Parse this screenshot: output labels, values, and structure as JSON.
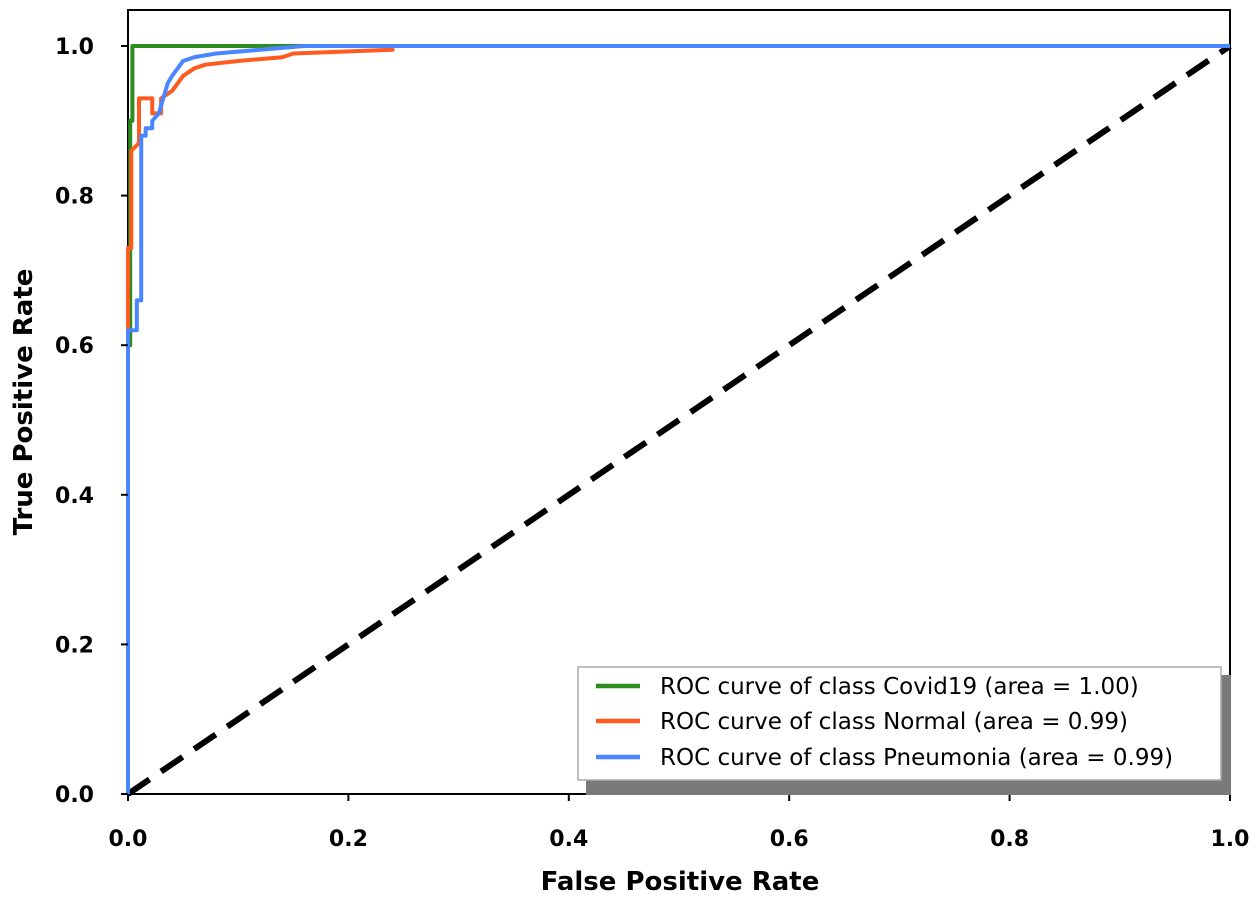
{
  "chart_data": {
    "type": "line",
    "title": "",
    "xlabel": "False Positive Rate",
    "ylabel": "True Positive Rate",
    "xlim": [
      0.0,
      1.0
    ],
    "ylim": [
      0.0,
      1.0
    ],
    "x_ticks": [
      "0.0",
      "0.2",
      "0.4",
      "0.6",
      "0.8",
      "1.0"
    ],
    "y_ticks": [
      "0.0",
      "0.2",
      "0.4",
      "0.6",
      "0.8",
      "1.0"
    ],
    "grid": false,
    "legend_position": "bottom-right",
    "series": [
      {
        "name": "ROC curve of class Covid19 (area = 1.00)",
        "color": "#2e8b1f",
        "points": [
          [
            0.0,
            0.0
          ],
          [
            0.0,
            0.6
          ],
          [
            0.002,
            0.6
          ],
          [
            0.002,
            0.9
          ],
          [
            0.004,
            0.9
          ],
          [
            0.004,
            1.0
          ],
          [
            1.0,
            1.0
          ]
        ]
      },
      {
        "name": "ROC curve of class Normal (area = 0.99)",
        "color": "#ff5a1f",
        "points": [
          [
            0.0,
            0.0
          ],
          [
            0.0,
            0.73
          ],
          [
            0.003,
            0.73
          ],
          [
            0.003,
            0.86
          ],
          [
            0.01,
            0.87
          ],
          [
            0.01,
            0.93
          ],
          [
            0.022,
            0.93
          ],
          [
            0.022,
            0.91
          ],
          [
            0.03,
            0.91
          ],
          [
            0.03,
            0.93
          ],
          [
            0.04,
            0.94
          ],
          [
            0.045,
            0.95
          ],
          [
            0.05,
            0.96
          ],
          [
            0.06,
            0.97
          ],
          [
            0.07,
            0.975
          ],
          [
            0.1,
            0.98
          ],
          [
            0.14,
            0.985
          ],
          [
            0.15,
            0.99
          ],
          [
            0.24,
            0.995
          ],
          [
            0.24,
            1.0
          ],
          [
            1.0,
            1.0
          ]
        ]
      },
      {
        "name": "ROC curve of class Pneumonia (area = 0.99)",
        "color": "#4a86ff",
        "points": [
          [
            0.0,
            0.0
          ],
          [
            0.0,
            0.62
          ],
          [
            0.008,
            0.62
          ],
          [
            0.008,
            0.66
          ],
          [
            0.012,
            0.66
          ],
          [
            0.012,
            0.88
          ],
          [
            0.016,
            0.88
          ],
          [
            0.016,
            0.89
          ],
          [
            0.022,
            0.89
          ],
          [
            0.022,
            0.9
          ],
          [
            0.028,
            0.91
          ],
          [
            0.032,
            0.93
          ],
          [
            0.036,
            0.95
          ],
          [
            0.04,
            0.96
          ],
          [
            0.045,
            0.97
          ],
          [
            0.05,
            0.98
          ],
          [
            0.06,
            0.985
          ],
          [
            0.08,
            0.99
          ],
          [
            0.12,
            0.995
          ],
          [
            0.16,
            1.0
          ],
          [
            1.0,
            1.0
          ]
        ]
      }
    ],
    "reference_line": {
      "style": "dashed",
      "color": "#000000",
      "points": [
        [
          0.0,
          0.0
        ],
        [
          1.0,
          1.0
        ]
      ]
    }
  }
}
